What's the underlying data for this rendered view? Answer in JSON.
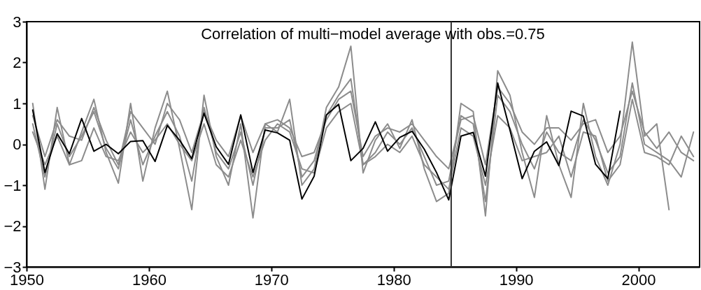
{
  "chart_data": {
    "type": "line",
    "annotations": [
      "Correlation of multi−model average with obs.=0.75"
    ],
    "xlim": [
      1950,
      2005
    ],
    "xticks": [
      1950,
      1960,
      1970,
      1980,
      1990,
      2000
    ],
    "ylim": [
      -3,
      3
    ],
    "yticks": [
      -3,
      -2,
      -1,
      0,
      1,
      2,
      3
    ],
    "ref_lines": [
      {
        "axis": "x",
        "value": 1984.7,
        "color": "#333333"
      }
    ],
    "series": [
      {
        "color": "#8c8c8c",
        "x": [
          1950.5,
          1951.5,
          1952.5,
          1953.5,
          1954.5,
          1955.5,
          1956.5,
          1957.5,
          1958.5,
          1959.5,
          1960.5,
          1961.5,
          1962.5,
          1963.5,
          1964.5,
          1965.5,
          1966.5,
          1967.5,
          1968.5,
          1969.5,
          1970.5,
          1971.5,
          1972.5,
          1973.5,
          1974.5,
          1975.5,
          1976.5,
          1977.5,
          1978.5,
          1979.5,
          1980.5,
          1981.5,
          1982.5,
          1983.5,
          1984.5,
          1985.5,
          1986.5,
          1987.5,
          1988.5,
          1989.5,
          1990.5,
          1991.5,
          1992.5,
          1993.5,
          1994.5,
          1995.5,
          1996.5,
          1997.5,
          1998.5,
          1999.5,
          2000.5,
          2001.5,
          2002.5
        ],
        "values": [
          1.0,
          -1.1,
          0.9,
          -0.5,
          0.3,
          1.1,
          -0.2,
          -0.95,
          1.0,
          -0.9,
          0.4,
          1.3,
          -0.1,
          -1.6,
          1.2,
          -0.3,
          -1.0,
          0.5,
          -1.8,
          0.5,
          0.3,
          1.1,
          -1.0,
          -0.6,
          0.9,
          1.4,
          2.4,
          -0.7,
          0.1,
          0.5,
          -0.1,
          0.6,
          -0.6,
          -1.4,
          -1.2,
          1.0,
          0.8,
          -1.75,
          1.8,
          1.2,
          -0.2,
          -1.3,
          0.7,
          -0.5,
          -1.3,
          1.0,
          -0.3,
          -1.0,
          0.0,
          2.5,
          0.2,
          0.5,
          -1.6
        ]
      },
      {
        "color": "#8c8c8c",
        "x": [
          1950.5,
          1951.5,
          1952.5,
          1953.5,
          1954.5,
          1955.5,
          1956.5,
          1957.5,
          1958.5,
          1959.5,
          1960.5,
          1961.5,
          1962.5,
          1963.5,
          1964.5,
          1965.5,
          1966.5,
          1967.5,
          1968.5,
          1969.5,
          1970.5,
          1971.5,
          1972.5,
          1973.5,
          1974.5,
          1975.5,
          1976.5,
          1977.5,
          1978.5,
          1979.5,
          1980.5,
          1981.5,
          1982.5,
          1983.5,
          1984.5,
          1985.5,
          1986.5,
          1987.5,
          1988.5,
          1989.5,
          1990.5,
          1991.5,
          1992.5,
          1993.5,
          1994.5,
          1995.5,
          1996.5,
          1997.5,
          1998.5,
          1999.5,
          2000.5,
          2001.5,
          2002.5,
          2003.5,
          2004.5
        ],
        "values": [
          0.5,
          -0.8,
          0.5,
          -0.3,
          0.2,
          0.8,
          -0.1,
          -0.6,
          0.6,
          -0.5,
          0.2,
          0.8,
          0.2,
          -0.9,
          0.9,
          -0.2,
          -0.6,
          0.3,
          -1.0,
          0.4,
          0.4,
          0.6,
          -0.8,
          -0.4,
          0.7,
          1.2,
          1.6,
          -0.5,
          -0.2,
          0.3,
          0.0,
          0.4,
          -0.3,
          -1.0,
          -0.9,
          0.7,
          0.5,
          -1.4,
          1.2,
          0.8,
          0.0,
          -0.6,
          0.3,
          -0.2,
          -0.4,
          0.6,
          0.1,
          -0.7,
          -0.3,
          1.5,
          0.0,
          -0.2,
          -0.4,
          -0.8,
          0.3
        ]
      },
      {
        "color": "#8c8c8c",
        "x": [
          1950.5,
          1951.5,
          1952.5,
          1953.5,
          1954.5,
          1955.5,
          1956.5,
          1957.5,
          1958.5,
          1959.5,
          1960.5,
          1961.5,
          1962.5,
          1963.5,
          1964.5,
          1965.5,
          1966.5,
          1967.5,
          1968.5,
          1969.5,
          1970.5,
          1971.5,
          1972.5,
          1973.5,
          1974.5,
          1975.5,
          1976.5,
          1977.5,
          1978.5,
          1979.5,
          1980.5,
          1981.5,
          1982.5,
          1983.5,
          1984.5,
          1985.5,
          1986.5,
          1987.5,
          1988.5,
          1989.5,
          1990.5,
          1991.5,
          1992.5,
          1993.5,
          1994.5,
          1995.5,
          1996.5,
          1997.5,
          1998.5,
          1999.5,
          2000.5,
          2001.5,
          2002.5,
          2003.5,
          2004.5
        ],
        "values": [
          0.3,
          -0.5,
          0.2,
          -0.5,
          -0.4,
          0.4,
          -0.3,
          -0.4,
          0.3,
          -0.2,
          0.1,
          0.5,
          0.0,
          -0.4,
          0.5,
          -0.5,
          -0.8,
          0.1,
          -0.8,
          0.1,
          0.5,
          0.3,
          -0.6,
          -0.7,
          0.4,
          0.8,
          1.0,
          -0.5,
          -0.3,
          0.0,
          -0.2,
          0.2,
          -0.5,
          -0.8,
          -1.1,
          0.4,
          0.2,
          -1.0,
          0.7,
          0.4,
          -0.4,
          -0.3,
          -0.2,
          0.2,
          -0.8,
          0.3,
          0.2,
          -0.9,
          -0.5,
          1.1,
          -0.2,
          -0.3,
          -0.5,
          0.2,
          -0.3
        ]
      },
      {
        "color": "#8c8c8c",
        "x": [
          1950.5,
          1951.5,
          1952.5,
          1953.5,
          1954.5,
          1955.5,
          1956.5,
          1957.5,
          1958.5,
          1959.5,
          1960.5,
          1961.5,
          1962.5,
          1963.5,
          1964.5,
          1965.5,
          1966.5,
          1967.5,
          1968.5,
          1969.5,
          1970.5,
          1971.5,
          1972.5,
          1973.5,
          1974.5,
          1975.5,
          1976.5,
          1977.5,
          1978.5,
          1979.5,
          1980.5,
          1981.5,
          1982.5,
          1983.5,
          1984.5,
          1985.5,
          1986.5,
          1987.5,
          1988.5,
          1989.5,
          1990.5,
          1991.5,
          1992.5,
          1993.5,
          1994.5,
          1995.5,
          1996.5,
          1997.5,
          1998.5,
          1999.5,
          2000.5,
          2001.5,
          2002.5,
          2003.5,
          2004.5
        ],
        "values": [
          0.7,
          -0.3,
          0.6,
          0.2,
          0.1,
          0.9,
          0.1,
          -0.5,
          0.8,
          0.4,
          0.0,
          1.0,
          0.6,
          -0.2,
          0.8,
          0.1,
          -0.3,
          0.7,
          -0.2,
          0.5,
          0.6,
          0.4,
          -0.3,
          -0.2,
          0.6,
          1.1,
          1.3,
          -0.3,
          0.2,
          0.4,
          0.3,
          0.5,
          0.1,
          -0.3,
          -0.6,
          0.6,
          0.7,
          -0.5,
          1.4,
          1.0,
          0.3,
          0.0,
          0.4,
          0.4,
          0.1,
          0.5,
          0.6,
          -0.2,
          0.2,
          1.3,
          0.3,
          -0.1,
          0.3,
          -0.2,
          -0.4
        ]
      },
      {
        "color": "#000000",
        "x": [
          1950.5,
          1951.5,
          1952.5,
          1953.5,
          1954.5,
          1955.5,
          1956.5,
          1957.5,
          1958.5,
          1959.5,
          1960.5,
          1961.5,
          1962.5,
          1963.5,
          1964.5,
          1965.5,
          1966.5,
          1967.5,
          1968.5,
          1969.5,
          1970.5,
          1971.5,
          1972.5,
          1973.5,
          1974.5,
          1975.5,
          1976.5,
          1977.5,
          1978.5,
          1979.5,
          1980.5,
          1981.5,
          1982.5,
          1983.5,
          1984.5,
          1985.5,
          1986.5,
          1987.5,
          1988.5,
          1989.5,
          1990.5,
          1991.5,
          1992.5,
          1993.5,
          1994.5,
          1995.5,
          1996.5,
          1997.5,
          1998.5
        ],
        "values": [
          0.84,
          -0.69,
          0.26,
          -0.23,
          0.63,
          -0.17,
          0.0,
          -0.23,
          0.07,
          0.09,
          -0.42,
          0.46,
          0.1,
          -0.35,
          0.76,
          -0.06,
          -0.49,
          0.72,
          -0.69,
          0.35,
          0.28,
          0.1,
          -1.34,
          -0.78,
          0.72,
          0.98,
          -0.4,
          -0.1,
          0.55,
          -0.17,
          0.17,
          0.32,
          -0.12,
          -0.69,
          -1.36,
          0.2,
          0.29,
          -0.78,
          1.5,
          0.35,
          -0.84,
          -0.17,
          0.06,
          -0.52,
          0.81,
          0.69,
          -0.49,
          -0.84,
          0.81
        ]
      }
    ]
  }
}
